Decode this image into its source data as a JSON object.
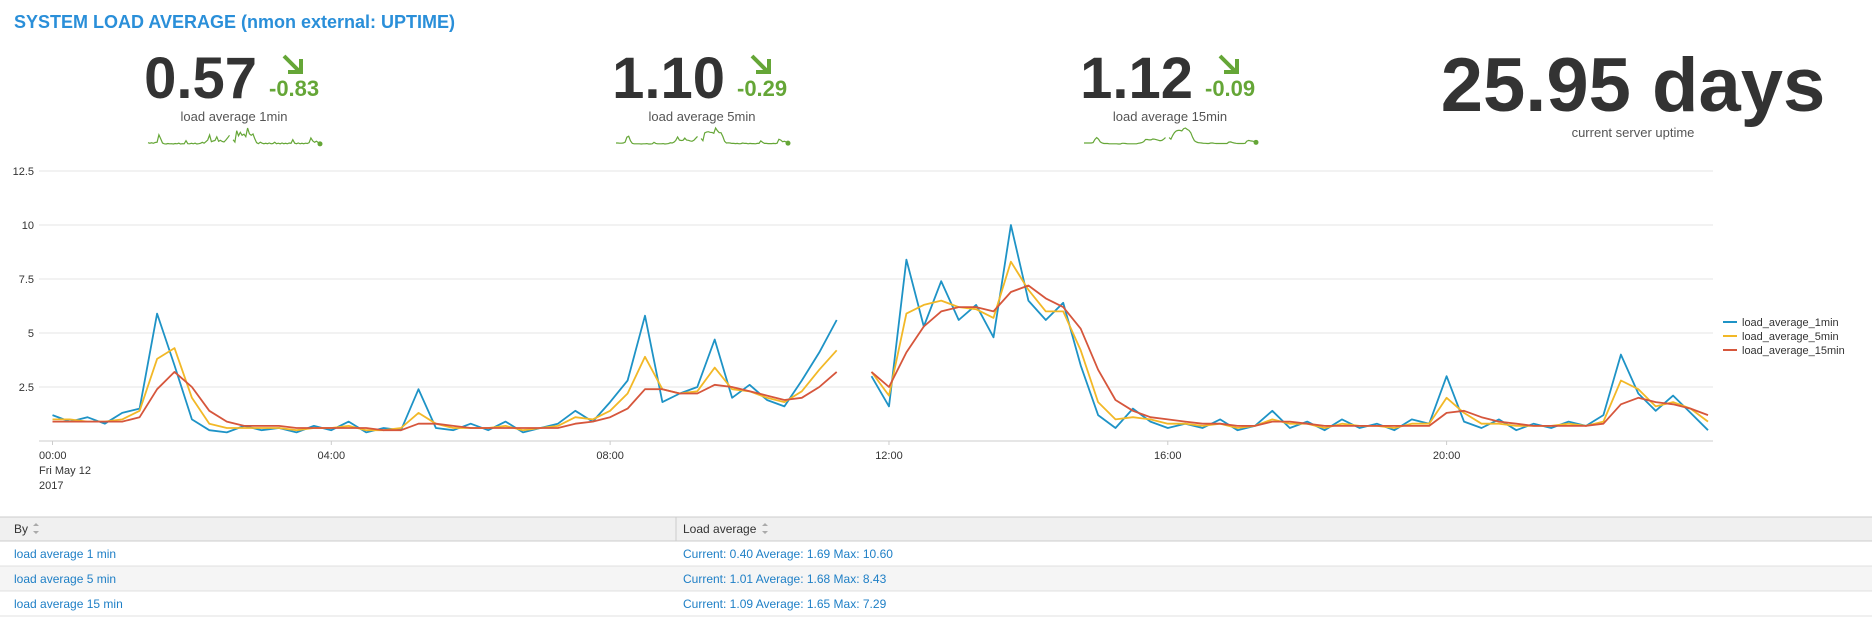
{
  "title": "SYSTEM LOAD AVERAGE (nmon external: UPTIME)",
  "kpis": [
    {
      "value": "0.57",
      "delta": "-0.83",
      "label": "load average 1min"
    },
    {
      "value": "1.10",
      "delta": "-0.29",
      "label": "load average 5min"
    },
    {
      "value": "1.12",
      "delta": "-0.09",
      "label": "load average 15min"
    }
  ],
  "uptime": {
    "value": "25.95 days",
    "label": "current server uptime"
  },
  "chart_data": {
    "type": "line",
    "categories": [
      "00:00",
      null,
      null,
      null,
      null,
      null,
      null,
      null,
      null,
      null,
      null,
      null,
      null,
      null,
      null,
      null,
      "04:00",
      null,
      null,
      null,
      null,
      null,
      null,
      null,
      null,
      null,
      null,
      null,
      null,
      null,
      null,
      null,
      "08:00",
      null,
      null,
      null,
      null,
      null,
      null,
      null,
      null,
      null,
      null,
      null,
      null,
      null,
      null,
      null,
      "12:00",
      null,
      null,
      null,
      null,
      null,
      null,
      null,
      null,
      null,
      null,
      null,
      null,
      null,
      null,
      null,
      "16:00",
      null,
      null,
      null,
      null,
      null,
      null,
      null,
      null,
      null,
      null,
      null,
      null,
      null,
      null,
      null,
      "20:00",
      null,
      null,
      null,
      null,
      null,
      null,
      null,
      null,
      null,
      null,
      null,
      null,
      null,
      null,
      null
    ],
    "x_date": "Fri May 12",
    "x_year": "2017",
    "ylim": [
      0,
      12.5
    ],
    "yticks": [
      2.5,
      5,
      7.5,
      10,
      12.5
    ],
    "grid": true,
    "legend": "right",
    "series": [
      {
        "name": "load_average_1min",
        "color": "#1e93c6",
        "values": [
          1.2,
          0.9,
          1.1,
          0.8,
          1.3,
          1.5,
          5.9,
          3.5,
          1.0,
          0.5,
          0.4,
          0.7,
          0.5,
          0.6,
          0.4,
          0.7,
          0.5,
          0.9,
          0.4,
          0.6,
          0.5,
          2.4,
          0.6,
          0.5,
          0.8,
          0.5,
          0.9,
          0.4,
          0.6,
          0.8,
          1.4,
          0.9,
          1.8,
          2.8,
          5.8,
          1.8,
          2.2,
          2.5,
          4.7,
          2.0,
          2.6,
          1.9,
          1.6,
          2.8,
          4.1,
          5.6,
          null,
          3.0,
          1.6,
          8.4,
          5.3,
          7.4,
          5.6,
          6.3,
          4.8,
          10.0,
          6.5,
          5.6,
          6.4,
          3.5,
          1.2,
          0.6,
          1.5,
          0.9,
          0.6,
          0.8,
          0.6,
          1.0,
          0.5,
          0.7,
          1.4,
          0.6,
          0.9,
          0.5,
          1.0,
          0.6,
          0.8,
          0.5,
          1.0,
          0.8,
          3.0,
          0.9,
          0.6,
          1.0,
          0.5,
          0.8,
          0.6,
          0.9,
          0.7,
          1.2,
          4.0,
          2.2,
          1.4,
          2.1,
          1.3,
          0.5
        ]
      },
      {
        "name": "load_average_5min",
        "color": "#f2b827",
        "values": [
          1.0,
          1.0,
          0.9,
          0.9,
          1.0,
          1.4,
          3.8,
          4.3,
          2.0,
          0.8,
          0.6,
          0.6,
          0.6,
          0.6,
          0.5,
          0.6,
          0.6,
          0.7,
          0.5,
          0.5,
          0.6,
          1.3,
          0.8,
          0.6,
          0.6,
          0.6,
          0.7,
          0.5,
          0.6,
          0.7,
          1.1,
          1.0,
          1.4,
          2.2,
          3.9,
          2.4,
          2.2,
          2.3,
          3.4,
          2.4,
          2.3,
          2.0,
          1.8,
          2.3,
          3.3,
          4.2,
          null,
          3.2,
          2.1,
          5.9,
          6.3,
          6.5,
          6.2,
          6.1,
          5.7,
          8.3,
          7.0,
          6.0,
          6.0,
          4.2,
          1.8,
          1.0,
          1.1,
          1.0,
          0.8,
          0.8,
          0.7,
          0.8,
          0.6,
          0.7,
          1.0,
          0.8,
          0.8,
          0.6,
          0.8,
          0.7,
          0.7,
          0.6,
          0.8,
          0.8,
          2.0,
          1.3,
          0.8,
          0.8,
          0.7,
          0.7,
          0.7,
          0.8,
          0.7,
          0.9,
          2.8,
          2.4,
          1.6,
          1.8,
          1.5,
          0.9
        ]
      },
      {
        "name": "load_average_15min",
        "color": "#d6563c",
        "values": [
          0.9,
          0.9,
          0.9,
          0.9,
          0.9,
          1.1,
          2.4,
          3.2,
          2.5,
          1.4,
          0.9,
          0.7,
          0.7,
          0.7,
          0.6,
          0.6,
          0.6,
          0.6,
          0.6,
          0.5,
          0.5,
          0.8,
          0.8,
          0.7,
          0.6,
          0.6,
          0.6,
          0.6,
          0.6,
          0.6,
          0.8,
          0.9,
          1.1,
          1.5,
          2.4,
          2.4,
          2.2,
          2.2,
          2.6,
          2.5,
          2.3,
          2.1,
          1.9,
          2.0,
          2.5,
          3.2,
          null,
          3.2,
          2.5,
          4.1,
          5.3,
          6.0,
          6.2,
          6.2,
          6.0,
          6.9,
          7.2,
          6.6,
          6.2,
          5.2,
          3.3,
          1.9,
          1.4,
          1.1,
          1.0,
          0.9,
          0.8,
          0.8,
          0.7,
          0.7,
          0.9,
          0.9,
          0.8,
          0.7,
          0.7,
          0.7,
          0.7,
          0.7,
          0.7,
          0.7,
          1.3,
          1.4,
          1.1,
          0.9,
          0.8,
          0.7,
          0.7,
          0.7,
          0.7,
          0.8,
          1.7,
          2.0,
          1.8,
          1.7,
          1.5,
          1.2
        ]
      }
    ]
  },
  "table": {
    "columns": [
      "By",
      "Load average"
    ],
    "rows": [
      [
        "load average 1 min",
        "Current: 0.40 Average: 1.69 Max: 10.60"
      ],
      [
        "load average 5 min",
        "Current: 1.01 Average: 1.68 Max: 8.43"
      ],
      [
        "load average 15 min",
        "Current: 1.09 Average: 1.65 Max: 7.29"
      ]
    ]
  }
}
